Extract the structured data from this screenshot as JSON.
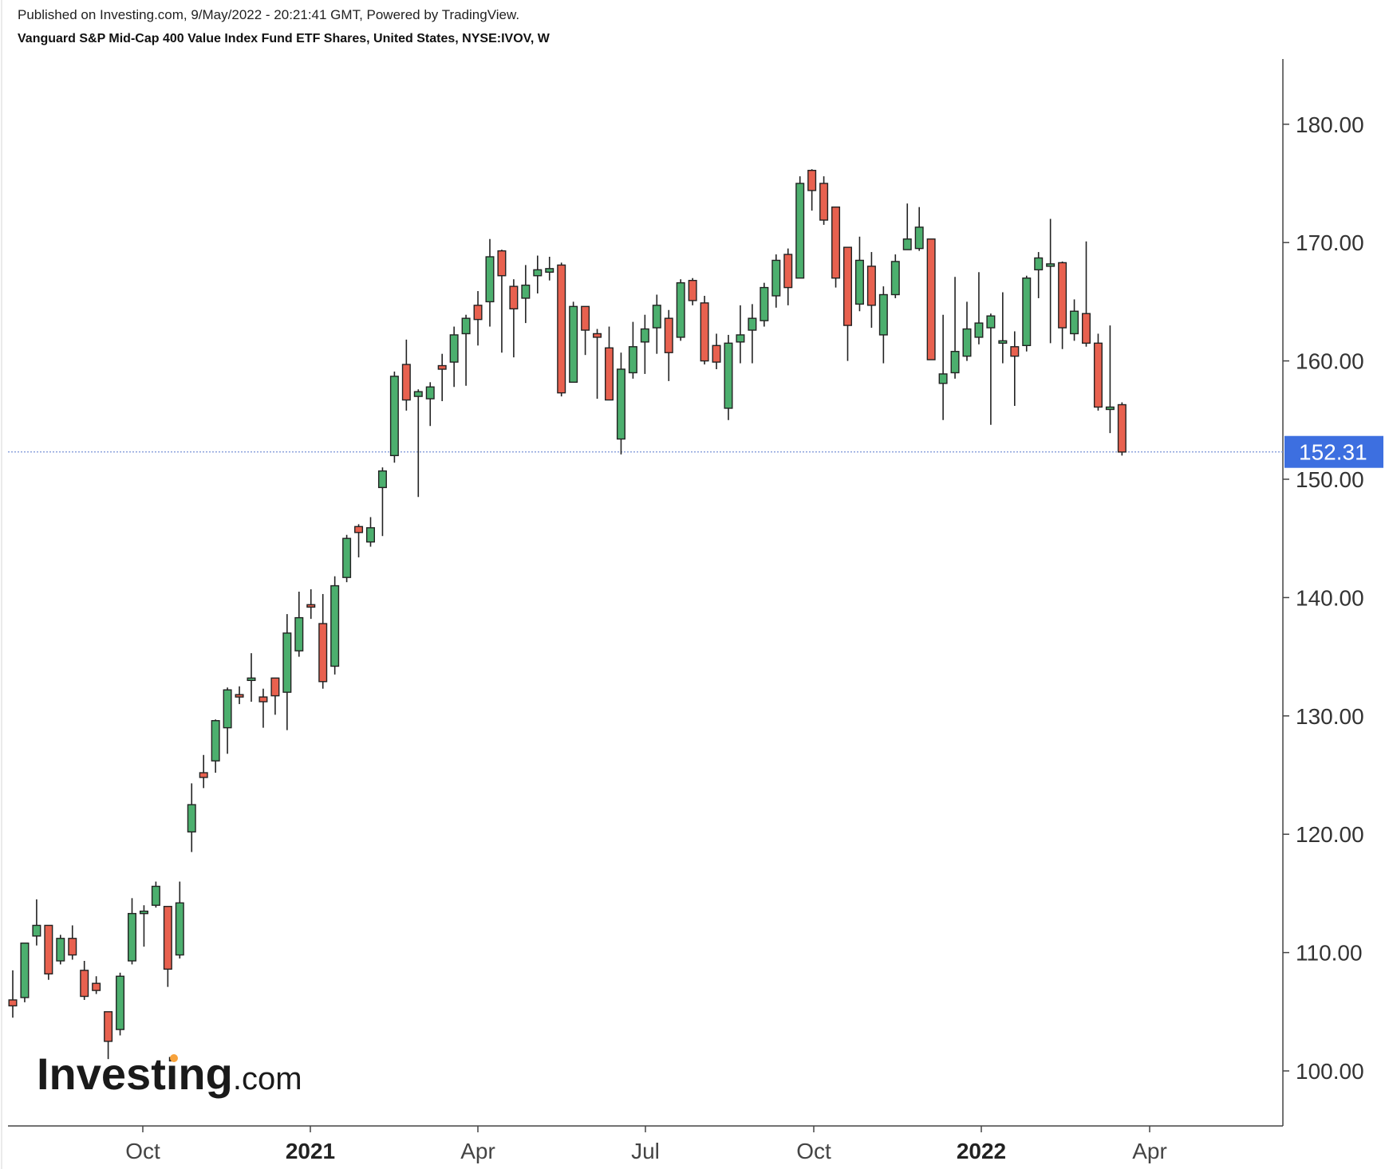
{
  "header": {
    "published": "Published on Investing.com, 9/May/2022 - 20:21:41 GMT, Powered by TradingView.",
    "instrument": "Vanguard S&P Mid-Cap 400 Value Index Fund ETF Shares, United States, NYSE:IVOV, W"
  },
  "watermark": "Investing.com",
  "colors": {
    "up": "#4caf6e",
    "down": "#e8614f",
    "wick": "#222222",
    "price_badge": "#3d6fe0",
    "price_line": "#7a93d6"
  },
  "chart_data": {
    "type": "candlestick",
    "interval": "W",
    "y_axis": {
      "side": "right",
      "range": [
        95,
        185
      ],
      "ticks": [
        "100.00",
        "110.00",
        "120.00",
        "130.00",
        "140.00",
        "150.00",
        "160.00",
        "170.00",
        "180.00"
      ]
    },
    "x_axis": {
      "labels": [
        "Oct",
        "2021",
        "Apr",
        "Jul",
        "Oct",
        "2022",
        "Apr"
      ],
      "bold": [
        "2021",
        "2022"
      ]
    },
    "last_price": "152.31",
    "last_price_value": 152.31,
    "candles": [
      [
        106.0,
        108.5,
        104.5,
        105.5
      ],
      [
        106.2,
        110.8,
        105.8,
        110.8
      ],
      [
        111.4,
        114.5,
        110.6,
        112.3
      ],
      [
        112.3,
        112.3,
        107.7,
        108.2
      ],
      [
        109.3,
        111.5,
        109.0,
        111.2
      ],
      [
        111.2,
        112.3,
        109.4,
        109.8
      ],
      [
        108.5,
        109.3,
        106.0,
        106.3
      ],
      [
        107.4,
        108.0,
        106.5,
        106.8
      ],
      [
        105.0,
        105.0,
        101.0,
        102.5
      ],
      [
        103.5,
        108.3,
        103.0,
        108.0
      ],
      [
        109.3,
        114.6,
        109.0,
        113.3
      ],
      [
        113.3,
        114.0,
        110.5,
        113.5
      ],
      [
        114.0,
        116.0,
        113.8,
        115.6
      ],
      [
        113.9,
        113.9,
        107.1,
        108.6
      ],
      [
        109.8,
        116.0,
        109.5,
        114.2
      ],
      [
        120.2,
        124.3,
        118.5,
        122.5
      ],
      [
        125.2,
        126.7,
        123.9,
        124.8
      ],
      [
        126.2,
        129.7,
        125.2,
        129.6
      ],
      [
        129.0,
        132.4,
        126.8,
        132.2
      ],
      [
        131.8,
        132.5,
        131.0,
        131.6
      ],
      [
        133.2,
        135.3,
        131.2,
        133.2
      ],
      [
        131.6,
        132.3,
        129.0,
        131.2
      ],
      [
        133.2,
        133.2,
        130.1,
        131.7
      ],
      [
        132.0,
        138.6,
        128.8,
        137.0
      ],
      [
        135.5,
        140.5,
        135.0,
        138.3
      ],
      [
        139.4,
        140.7,
        138.2,
        139.2
      ],
      [
        137.8,
        140.3,
        132.3,
        132.9
      ],
      [
        134.2,
        141.8,
        133.5,
        141.0
      ],
      [
        141.7,
        145.3,
        141.3,
        145.0
      ],
      [
        146.0,
        146.2,
        143.4,
        145.5
      ],
      [
        144.7,
        146.8,
        144.3,
        145.9
      ],
      [
        149.3,
        151.0,
        145.2,
        150.7
      ],
      [
        152.0,
        159.1,
        151.4,
        158.7
      ],
      [
        159.7,
        161.8,
        155.8,
        156.7
      ],
      [
        157.0,
        157.6,
        148.5,
        157.4
      ],
      [
        156.8,
        158.2,
        154.5,
        157.8
      ],
      [
        159.6,
        160.6,
        156.6,
        159.3
      ],
      [
        159.9,
        162.9,
        157.8,
        162.2
      ],
      [
        162.3,
        163.9,
        157.9,
        163.6
      ],
      [
        164.7,
        165.9,
        161.3,
        163.5
      ],
      [
        165.0,
        170.3,
        162.9,
        168.8
      ],
      [
        169.3,
        169.4,
        160.7,
        167.2
      ],
      [
        166.3,
        166.9,
        160.3,
        164.4
      ],
      [
        165.3,
        168.1,
        163.2,
        166.4
      ],
      [
        167.2,
        168.9,
        165.7,
        167.7
      ],
      [
        167.5,
        168.8,
        166.8,
        167.8
      ],
      [
        168.1,
        168.3,
        157.0,
        157.3
      ],
      [
        158.2,
        165.0,
        158.2,
        164.6
      ],
      [
        164.6,
        164.6,
        160.5,
        162.6
      ],
      [
        162.3,
        162.7,
        156.8,
        162.0
      ],
      [
        161.1,
        162.9,
        156.8,
        156.7
      ],
      [
        153.4,
        160.7,
        152.1,
        159.3
      ],
      [
        159.0,
        163.3,
        158.5,
        161.2
      ],
      [
        161.6,
        163.9,
        158.9,
        162.7
      ],
      [
        162.8,
        165.6,
        160.6,
        164.7
      ],
      [
        163.6,
        164.3,
        158.3,
        160.7
      ],
      [
        162.0,
        166.9,
        161.7,
        166.6
      ],
      [
        166.8,
        167.0,
        164.7,
        165.1
      ],
      [
        164.9,
        165.5,
        159.7,
        160.0
      ],
      [
        161.3,
        162.3,
        159.3,
        159.9
      ],
      [
        156.0,
        162.2,
        155.0,
        161.5
      ],
      [
        161.6,
        164.7,
        159.8,
        162.2
      ],
      [
        162.6,
        164.8,
        159.8,
        163.6
      ],
      [
        163.4,
        166.6,
        162.9,
        166.2
      ],
      [
        165.5,
        169.0,
        164.5,
        168.5
      ],
      [
        169.0,
        169.5,
        164.7,
        166.2
      ],
      [
        167.0,
        175.6,
        167.0,
        175.0
      ],
      [
        176.1,
        176.2,
        172.7,
        174.4
      ],
      [
        175.0,
        175.6,
        171.5,
        171.9
      ],
      [
        173.0,
        173.0,
        166.2,
        167.0
      ],
      [
        169.6,
        169.6,
        160.0,
        163.0
      ],
      [
        164.8,
        170.5,
        164.2,
        168.5
      ],
      [
        168.0,
        169.2,
        162.8,
        164.7
      ],
      [
        162.2,
        166.3,
        159.8,
        165.6
      ],
      [
        165.6,
        169.0,
        165.3,
        168.4
      ],
      [
        169.4,
        173.3,
        169.4,
        170.3
      ],
      [
        169.5,
        173.0,
        169.3,
        171.3
      ],
      [
        170.3,
        170.3,
        160.1,
        160.1
      ],
      [
        158.1,
        163.9,
        155.0,
        158.9
      ],
      [
        159.0,
        167.1,
        158.5,
        160.8
      ],
      [
        160.4,
        165.0,
        160.0,
        162.7
      ],
      [
        162.0,
        167.5,
        161.4,
        163.2
      ],
      [
        162.8,
        164.0,
        154.6,
        163.8
      ],
      [
        161.7,
        165.8,
        159.8,
        161.7
      ],
      [
        161.2,
        162.5,
        156.2,
        160.4
      ],
      [
        161.3,
        167.2,
        160.8,
        167.0
      ],
      [
        167.7,
        169.2,
        165.3,
        168.7
      ],
      [
        168.2,
        172.0,
        161.5,
        168.2
      ],
      [
        168.3,
        168.4,
        161.0,
        162.8
      ],
      [
        162.3,
        165.2,
        161.7,
        164.2
      ],
      [
        164.0,
        170.1,
        161.2,
        161.5
      ],
      [
        161.5,
        162.3,
        155.8,
        156.1
      ],
      [
        156.1,
        163.0,
        153.9,
        156.1
      ],
      [
        156.3,
        156.5,
        152.0,
        152.3
      ]
    ]
  }
}
